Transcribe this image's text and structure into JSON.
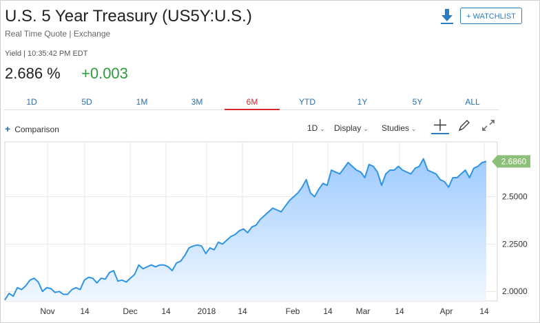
{
  "header": {
    "title": "U.S. 5 Year Treasury (US5Y:U.S.)",
    "subtitle": "Real Time Quote | Exchange",
    "watchlist_label": "+ WATCHLIST"
  },
  "quote": {
    "meta": "Yield | 10:35:42 PM EDT",
    "price": "2.686 %",
    "change": "+0.003"
  },
  "range_tabs": [
    {
      "label": "1D"
    },
    {
      "label": "5D"
    },
    {
      "label": "1M"
    },
    {
      "label": "3M"
    },
    {
      "label": "6M",
      "active": true
    },
    {
      "label": "YTD"
    },
    {
      "label": "1Y"
    },
    {
      "label": "5Y"
    },
    {
      "label": "ALL"
    }
  ],
  "toolbar": {
    "comparison_label": "Comparison",
    "interval_label": "1D",
    "display_label": "Display",
    "studies_label": "Studies"
  },
  "colors": {
    "line": "#2f94e3",
    "fill_top": "#9fcbff",
    "fill_bottom": "#f1f8ff",
    "active_tab": "#d32b2b",
    "positive": "#2e9b3c",
    "last_price_tag": "#8cbf78"
  },
  "icons": [
    "download-icon",
    "crosshair-icon",
    "pencil-icon",
    "expand-icon"
  ],
  "chart_data": {
    "type": "area",
    "x_labels": [
      "Nov",
      "14",
      "Dec",
      "14",
      "2018",
      "14",
      "Feb",
      "14",
      "Mar",
      "14",
      "Apr",
      "14"
    ],
    "y_ticks": [
      "2.0000",
      "2.2500",
      "2.5000"
    ],
    "ylim": [
      1.95,
      2.76
    ],
    "grid": true,
    "last_value_label": "2.6860",
    "values": [
      1.955,
      1.99,
      1.975,
      2.02,
      2.01,
      2.03,
      2.06,
      2.07,
      2.05,
      2.0,
      2.02,
      2.015,
      1.995,
      2.0,
      1.985,
      1.985,
      2.01,
      2.02,
      2.01,
      2.06,
      2.075,
      2.07,
      2.045,
      2.07,
      2.065,
      2.1,
      2.11,
      2.055,
      2.06,
      2.05,
      2.07,
      2.09,
      2.14,
      2.12,
      2.13,
      2.14,
      2.13,
      2.14,
      2.14,
      2.13,
      2.11,
      2.15,
      2.16,
      2.19,
      2.23,
      2.24,
      2.245,
      2.24,
      2.2,
      2.23,
      2.22,
      2.26,
      2.25,
      2.27,
      2.29,
      2.3,
      2.32,
      2.33,
      2.31,
      2.34,
      2.35,
      2.38,
      2.4,
      2.42,
      2.44,
      2.43,
      2.42,
      2.45,
      2.48,
      2.5,
      2.52,
      2.55,
      2.59,
      2.52,
      2.5,
      2.54,
      2.57,
      2.56,
      2.64,
      2.63,
      2.62,
      2.65,
      2.68,
      2.66,
      2.64,
      2.63,
      2.6,
      2.67,
      2.66,
      2.63,
      2.56,
      2.62,
      2.64,
      2.64,
      2.66,
      2.64,
      2.63,
      2.62,
      2.65,
      2.66,
      2.7,
      2.64,
      2.63,
      2.62,
      2.59,
      2.58,
      2.55,
      2.6,
      2.6,
      2.62,
      2.64,
      2.6,
      2.65,
      2.66,
      2.68,
      2.686
    ]
  }
}
